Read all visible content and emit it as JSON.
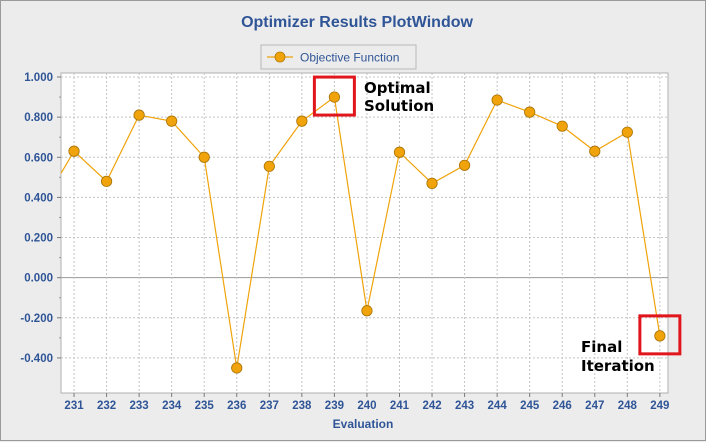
{
  "window": {
    "title": "Optimizer Results PlotWindow"
  },
  "chart_data": {
    "type": "line",
    "title": "Optimizer Results PlotWindow",
    "xlabel": "Evaluation",
    "ylabel": "",
    "x": [
      231,
      232,
      233,
      234,
      235,
      236,
      237,
      238,
      239,
      240,
      241,
      242,
      243,
      244,
      245,
      246,
      247,
      248,
      249
    ],
    "x_ticks": [
      "231",
      "232",
      "233",
      "234",
      "235",
      "236",
      "237",
      "238",
      "239",
      "240",
      "241",
      "242",
      "243",
      "244",
      "245",
      "246",
      "247",
      "248",
      "249"
    ],
    "xlim": [
      230.6,
      249.25
    ],
    "ylim": [
      -0.5,
      1.0
    ],
    "y_ticks": [
      "1.000",
      "0.800",
      "0.600",
      "0.400",
      "0.200",
      "0.000",
      "-0.200",
      "-0.400"
    ],
    "series": [
      {
        "name": "Objective Function",
        "color": "#f0a30a",
        "values": [
          0.63,
          0.48,
          0.81,
          0.78,
          0.6,
          -0.45,
          0.555,
          0.78,
          0.9,
          -0.165,
          0.625,
          0.47,
          0.56,
          0.885,
          0.825,
          0.755,
          0.63,
          0.725,
          -0.29
        ],
        "lead_in": {
          "x": 230.6,
          "y": 0.52
        }
      }
    ],
    "grid": true,
    "legend": {
      "placement": "top-center"
    },
    "annotations": [
      {
        "line1": "Optimal",
        "line2": "Solution",
        "x": 239,
        "y": 0.9
      },
      {
        "line1": "Final",
        "line2": "Iteration",
        "x": 249,
        "y": -0.29
      }
    ],
    "highlight_color": "#e0161c"
  }
}
